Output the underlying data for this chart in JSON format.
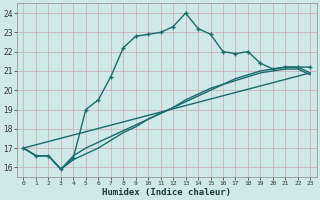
{
  "xlabel": "Humidex (Indice chaleur)",
  "bg_color": "#cfe8ea",
  "grid_color": "#b0d0d4",
  "line_color": "#1a6b6b",
  "xlim": [
    -0.5,
    23.5
  ],
  "ylim": [
    15.5,
    24.5
  ],
  "xticks": [
    0,
    1,
    2,
    3,
    4,
    5,
    6,
    7,
    8,
    9,
    10,
    11,
    12,
    13,
    14,
    15,
    16,
    17,
    18,
    19,
    20,
    21,
    22,
    23
  ],
  "yticks": [
    16,
    17,
    18,
    19,
    20,
    21,
    22,
    23,
    24
  ],
  "line1_x": [
    0,
    1,
    2,
    3,
    4,
    5,
    6,
    7,
    8,
    9,
    10,
    11,
    12,
    13,
    14,
    15,
    16,
    17,
    18,
    19,
    20,
    21,
    22,
    23
  ],
  "line1_y": [
    17.0,
    16.6,
    16.6,
    15.9,
    16.5,
    19.0,
    19.5,
    20.7,
    22.2,
    22.8,
    22.9,
    23.0,
    23.3,
    24.0,
    23.2,
    22.9,
    22.0,
    21.9,
    22.0,
    21.4,
    21.1,
    21.2,
    21.2,
    21.2
  ],
  "line2_x": [
    0,
    1,
    2,
    3,
    4,
    5,
    6,
    7,
    8,
    9,
    10,
    11,
    12,
    13,
    14,
    15,
    16,
    17,
    18,
    19,
    20,
    21,
    22,
    23
  ],
  "line2_y": [
    17.0,
    16.6,
    16.6,
    15.9,
    16.6,
    17.0,
    17.3,
    17.6,
    17.9,
    18.2,
    18.5,
    18.8,
    19.1,
    19.4,
    19.7,
    20.0,
    20.3,
    20.6,
    20.8,
    21.0,
    21.1,
    21.2,
    21.2,
    20.9
  ],
  "line3_x": [
    0,
    1,
    2,
    3,
    4,
    5,
    6,
    7,
    8,
    9,
    10,
    11,
    12,
    13,
    14,
    15,
    16,
    17,
    18,
    19,
    20,
    21,
    22,
    23
  ],
  "line3_y": [
    17.0,
    16.6,
    16.6,
    15.9,
    16.4,
    16.7,
    17.0,
    17.4,
    17.8,
    18.1,
    18.5,
    18.8,
    19.1,
    19.5,
    19.8,
    20.1,
    20.3,
    20.5,
    20.7,
    20.9,
    21.0,
    21.1,
    21.1,
    20.8
  ],
  "line4_x": [
    0,
    23
  ],
  "line4_y": [
    17.0,
    20.9
  ]
}
